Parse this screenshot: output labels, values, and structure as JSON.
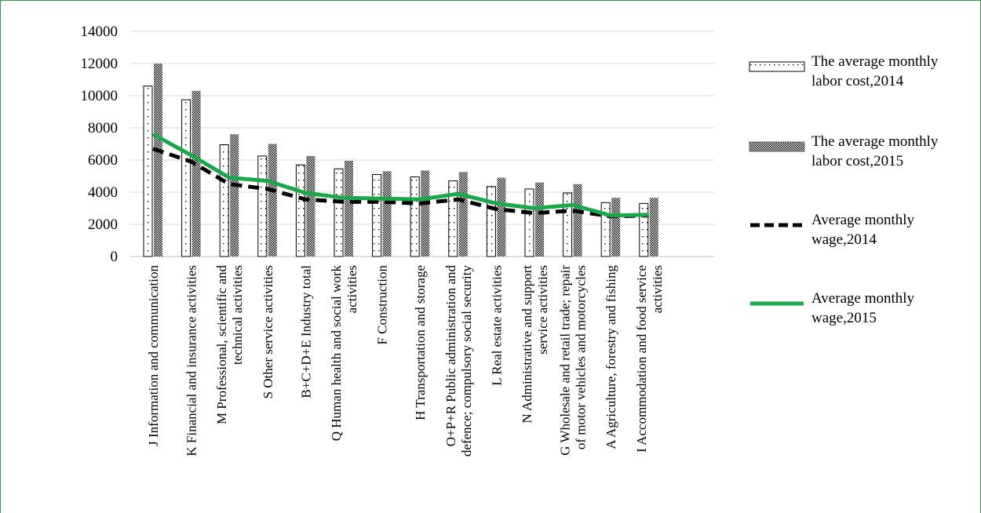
{
  "chart_data": {
    "type": "bar",
    "title": "",
    "xlabel": "",
    "ylabel": "",
    "ylim": [
      0,
      14000
    ],
    "yticks": [
      0,
      2000,
      4000,
      6000,
      8000,
      10000,
      12000,
      14000
    ],
    "grid": true,
    "legend_position": "right",
    "categories": [
      "J Information and communication",
      "K Financial and insurance activities",
      "M Professional, scientific and technical activities",
      "S Other service activities",
      "B+C+D+E Industry total",
      "Q Human health and social work activities",
      "F Construction",
      "H Transportation and storage",
      "O+P+R  Public administration and defence; compulsory social security",
      "L Real estate activities",
      "N Administrative and support service activities",
      "G Wholesale and retail trade; repair of motor vehicles and motorcycles",
      "A Agriculture, forestry and fishing",
      "I Accommodation and food service activities"
    ],
    "series": [
      {
        "name": "The average monthly labor cost,2014",
        "kind": "bar",
        "pattern": "sparse-dots",
        "values": [
          10600,
          9750,
          6950,
          6250,
          5700,
          5450,
          5100,
          4950,
          4700,
          4350,
          4200,
          3950,
          3350,
          3300
        ]
      },
      {
        "name": "The average monthly labor cost,2015",
        "kind": "bar",
        "pattern": "dense-dots",
        "values": [
          12000,
          10300,
          7600,
          7000,
          6250,
          5950,
          5300,
          5350,
          5250,
          4900,
          4600,
          4500,
          3650,
          3650
        ]
      },
      {
        "name": "Average monthly wage,2014",
        "kind": "line",
        "color": "#000000",
        "dash": "dashed",
        "values": [
          6700,
          5900,
          4500,
          4200,
          3550,
          3400,
          3400,
          3300,
          3550,
          2950,
          2700,
          2850,
          2500,
          2550
        ]
      },
      {
        "name": "Average monthly wage,2015",
        "kind": "line",
        "color": "#1aa84a",
        "dash": "solid",
        "values": [
          7600,
          6300,
          4900,
          4700,
          3950,
          3650,
          3600,
          3550,
          3900,
          3300,
          3000,
          3200,
          2550,
          2600
        ]
      }
    ]
  },
  "legend": {
    "items": [
      {
        "line1": "The average monthly",
        "line2": "labor cost,2014"
      },
      {
        "line1": "The average monthly",
        "line2": "labor cost,2015"
      },
      {
        "line1": "Average monthly",
        "line2": "wage,2014"
      },
      {
        "line1": "Average monthly",
        "line2": "wage,2015"
      }
    ]
  },
  "category_label_lines": [
    [
      "J Information and communication"
    ],
    [
      "K Financial and insurance activities"
    ],
    [
      "M Professional, scientific and",
      "technical activities"
    ],
    [
      "S Other service activities"
    ],
    [
      "B+C+D+E Industry total"
    ],
    [
      "Q Human health and social work",
      "activities"
    ],
    [
      "F Construction"
    ],
    [
      "H Transportation and storage"
    ],
    [
      "O+P+R  Public administration and",
      "defence; compulsory social security"
    ],
    [
      "L Real estate activities"
    ],
    [
      "N Administrative and support",
      "service activities"
    ],
    [
      "G Wholesale and retail trade; repair",
      "of motor vehicles and motorcycles"
    ],
    [
      "A Agriculture, forestry and fishing"
    ],
    [
      "I Accommodation and food service",
      "activities"
    ]
  ],
  "colors": {
    "grid": "#d9d9d9",
    "frame": "#2e9e4f",
    "wage2015": "#1aa84a",
    "wage2014": "#000000",
    "bar_outline": "#000000"
  }
}
